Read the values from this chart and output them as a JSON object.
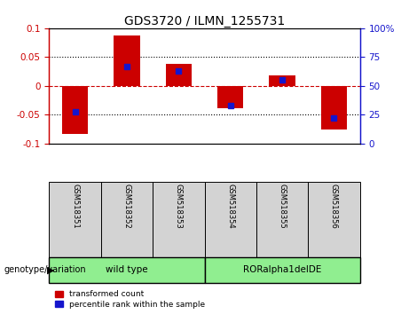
{
  "title": "GDS3720 / ILMN_1255731",
  "samples": [
    "GSM518351",
    "GSM518352",
    "GSM518353",
    "GSM518354",
    "GSM518355",
    "GSM518356"
  ],
  "transformed_count": [
    -0.083,
    0.088,
    0.038,
    -0.038,
    0.018,
    -0.075
  ],
  "percentile_rank": [
    28,
    67,
    63,
    33,
    55,
    22
  ],
  "ylim_left": [
    -0.1,
    0.1
  ],
  "ylim_right": [
    0,
    100
  ],
  "yticks_left": [
    -0.1,
    -0.05,
    0,
    0.05,
    0.1
  ],
  "yticks_right": [
    0,
    25,
    50,
    75,
    100
  ],
  "ytick_labels_left": [
    "-0.1",
    "-0.05",
    "0",
    "0.05",
    "0.1"
  ],
  "ytick_labels_right": [
    "0",
    "25",
    "50",
    "75",
    "100%"
  ],
  "red_color": "#CC0000",
  "blue_color": "#1515CC",
  "bar_width": 0.5,
  "groups": [
    {
      "label": "wild type",
      "start": 0,
      "end": 2
    },
    {
      "label": "RORalpha1delDE",
      "start": 3,
      "end": 5
    }
  ],
  "group_color": "#90EE90",
  "sample_bg": "#d3d3d3",
  "legend_items": [
    "transformed count",
    "percentile rank within the sample"
  ],
  "genotype_label": "genotype/variation"
}
